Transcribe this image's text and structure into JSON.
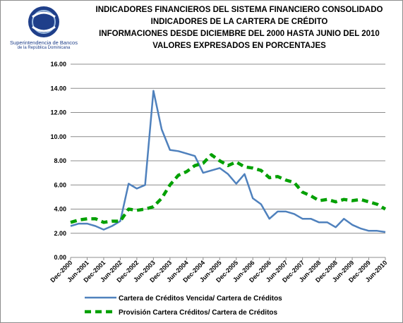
{
  "logo": {
    "line1": "Superintendencia de Bancos",
    "line2": "de la República Dominicana",
    "colors": {
      "primary": "#1f3f8a",
      "accent": "#9bbbe0"
    }
  },
  "chart_data": {
    "type": "line",
    "title": [
      "INDICADORES FINANCIEROS DEL SISTEMA FINANCIERO CONSOLIDADO",
      "INDICADORES DE LA CARTERA DE CRÉDITO",
      "INFORMACIONES DESDE DICIEMBRE DEL 2000  HASTA JUNIO DEL 2010",
      "VALORES EXPRESADOS EN PORCENTAJES"
    ],
    "xlabel": "",
    "ylabel": "",
    "ylim": [
      0,
      16
    ],
    "yticks": [
      "0.00",
      "2.00",
      "4.00",
      "6.00",
      "8.00",
      "10.00",
      "12.00",
      "14.00",
      "16.00"
    ],
    "categories": [
      "Dec-2000",
      "Mar-2001",
      "Jun-2001",
      "Sep-2001",
      "Dec-2001",
      "Mar-2002",
      "Jun-2002",
      "Sep-2002",
      "Dec-2002",
      "Mar-2003",
      "Jun-2003",
      "Sep-2003",
      "Dec-2003",
      "Mar-2004",
      "Jun-2004",
      "Sep-2004",
      "Dec-2004",
      "Mar-2005",
      "Jun-2005",
      "Sep-2005",
      "Dec-2005",
      "Mar-2006",
      "Jun-2006",
      "Sep-2006",
      "Dec-2006",
      "Mar-2007",
      "Jun-2007",
      "Sep-2007",
      "Dec-2007",
      "Mar-2008",
      "Jun-2008",
      "Sep-2008",
      "Dec-2008",
      "Mar-2009",
      "Jun-2009",
      "Sep-2009",
      "Dec-2009",
      "Mar-2010",
      "Jun-2010"
    ],
    "xtick_labels": [
      "Dec-2000",
      "Jun-2001",
      "Dec-2001",
      "Jun-2002",
      "Dec-2002",
      "Jun-2003",
      "Dec-2003",
      "Jun-2004",
      "Dec-2004",
      "Jun-2005",
      "Dec-2005",
      "Jun-2006",
      "Dec-2006",
      "Jun-2007",
      "Dec-2007",
      "Jun-2008",
      "Dec-2008",
      "Jun-2009",
      "Dec-2009",
      "Jun-2010"
    ],
    "grid": {
      "horizontal": true,
      "vertical": false
    },
    "legend": "bottom",
    "series": [
      {
        "name": "Cartera de Créditos Vencida/   Cartera de Créditos",
        "color": "#4f81bd",
        "style": "solid",
        "values": [
          2.6,
          2.8,
          2.8,
          2.6,
          2.3,
          2.6,
          3.0,
          6.1,
          5.7,
          6.0,
          13.8,
          10.6,
          8.9,
          8.8,
          8.6,
          8.4,
          7.0,
          7.2,
          7.4,
          6.9,
          6.1,
          6.9,
          4.9,
          4.4,
          3.2,
          3.8,
          3.8,
          3.6,
          3.2,
          3.2,
          2.9,
          2.9,
          2.5,
          3.2,
          2.7,
          2.4,
          2.2,
          2.2,
          2.1
        ]
      },
      {
        "name": "Provisión Cartera Créditos/ Cartera de Créditos",
        "color": "#00a000",
        "style": "dashed",
        "values": [
          2.9,
          3.1,
          3.2,
          3.2,
          2.9,
          3.0,
          3.0,
          4.0,
          3.9,
          4.0,
          4.2,
          4.9,
          6.0,
          6.8,
          7.1,
          7.6,
          7.8,
          8.5,
          8.0,
          7.6,
          7.9,
          7.5,
          7.4,
          7.2,
          6.6,
          6.7,
          6.4,
          6.2,
          5.4,
          5.1,
          4.7,
          4.8,
          4.6,
          4.8,
          4.7,
          4.8,
          4.6,
          4.4,
          4.0
        ]
      }
    ]
  }
}
